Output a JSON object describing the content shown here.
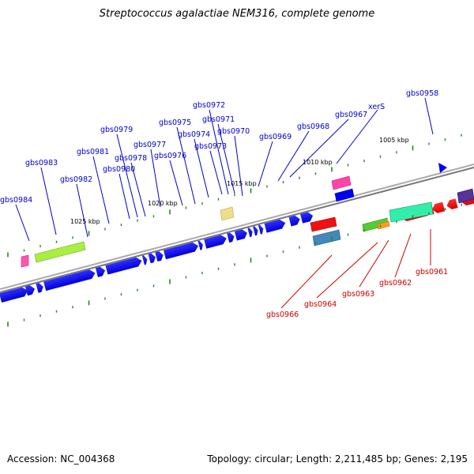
{
  "title": "Streptococcus agalactiae NEM316, complete genome",
  "footer": {
    "accession": "Accession: NC_004368",
    "summary": "Topology: circular; Length: 2,211,485 bp; Genes: 2,195"
  },
  "scale_labels": [
    "1005 kbp",
    "1010 kbp",
    "1015 kbp",
    "1020 kbp",
    "1025 kbp"
  ],
  "gene_labels_top": [
    "gbs0958",
    "xerS",
    "gbs0967",
    "gbs0968",
    "gbs0969",
    "gbs0970",
    "gbs0971",
    "gbs0972",
    "gbs0973",
    "gbs0974",
    "gbs0975",
    "gbs0976",
    "gbs0977",
    "gbs0978",
    "gbs0979",
    "gbs0980",
    "gbs0981",
    "gbs0982",
    "gbs0983",
    "gbs0984"
  ],
  "gene_labels_bottom": [
    "gbs0961",
    "gbs0962",
    "gbs0963",
    "gbs0964",
    "gbs0966"
  ],
  "colors": {
    "forward_genes": "#0000ee",
    "reverse_genes": "#ee0000",
    "backbone": "#888888",
    "ticks": "#228822",
    "top_labels": "#0000cc",
    "bottom_labels": "#cc0000"
  }
}
